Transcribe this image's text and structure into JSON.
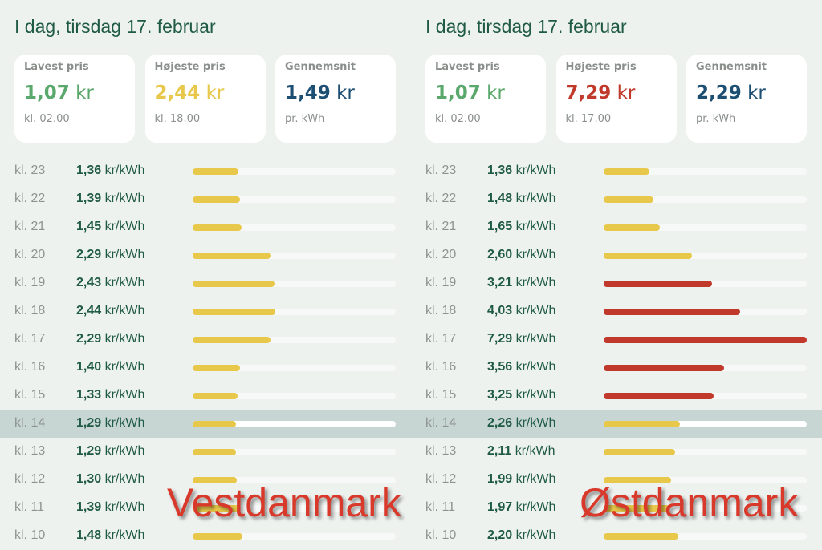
{
  "colors": {
    "low": "#5aa86c",
    "high_yellow": "#e8c84a",
    "high_red": "#c0392b",
    "avg": "#1d4f73",
    "bar_yellow": "#e8c84a",
    "bar_red": "#c0392b"
  },
  "panels": [
    {
      "title": "I dag, tirsdag 17. februar",
      "region_label": "Vestdanmark",
      "cards": [
        {
          "label": "Lavest pris",
          "value": "1,07",
          "unit": "kr",
          "sub": "kl. 02.00",
          "color": "#5aa86c"
        },
        {
          "label": "Højeste pris",
          "value": "2,44",
          "unit": "kr",
          "sub": "kl. 18.00",
          "color": "#e8c84a"
        },
        {
          "label": "Gennemsnit",
          "value": "1,49",
          "unit": "kr",
          "sub": "pr. kWh",
          "color": "#1d4f73"
        }
      ],
      "unit": "kr/kWh",
      "rows": [
        {
          "hour": "kl. 23",
          "price": "1,36"
        },
        {
          "hour": "kl. 22",
          "price": "1,39"
        },
        {
          "hour": "kl. 21",
          "price": "1,45"
        },
        {
          "hour": "kl. 20",
          "price": "2,29"
        },
        {
          "hour": "kl. 19",
          "price": "2,43"
        },
        {
          "hour": "kl. 18",
          "price": "2,44"
        },
        {
          "hour": "kl. 17",
          "price": "2,29"
        },
        {
          "hour": "kl. 16",
          "price": "1,40"
        },
        {
          "hour": "kl. 15",
          "price": "1,33"
        },
        {
          "hour": "kl. 14",
          "price": "1,29",
          "current": true
        },
        {
          "hour": "kl. 13",
          "price": "1,29"
        },
        {
          "hour": "kl. 12",
          "price": "1,30"
        },
        {
          "hour": "kl. 11",
          "price": "1,39"
        },
        {
          "hour": "kl. 10",
          "price": "1,48"
        }
      ]
    },
    {
      "title": "I dag, tirsdag 17. februar",
      "region_label": "Østdanmark",
      "cards": [
        {
          "label": "Lavest pris",
          "value": "1,07",
          "unit": "kr",
          "sub": "kl. 02.00",
          "color": "#5aa86c"
        },
        {
          "label": "Højeste pris",
          "value": "7,29",
          "unit": "kr",
          "sub": "kl. 17.00",
          "color": "#c0392b"
        },
        {
          "label": "Gennemsnit",
          "value": "2,29",
          "unit": "kr",
          "sub": "pr. kWh",
          "color": "#1d4f73"
        }
      ],
      "unit": "kr/kWh",
      "rows": [
        {
          "hour": "kl. 23",
          "price": "1,36"
        },
        {
          "hour": "kl. 22",
          "price": "1,48"
        },
        {
          "hour": "kl. 21",
          "price": "1,65"
        },
        {
          "hour": "kl. 20",
          "price": "2,60"
        },
        {
          "hour": "kl. 19",
          "price": "3,21"
        },
        {
          "hour": "kl. 18",
          "price": "4,03"
        },
        {
          "hour": "kl. 17",
          "price": "7,29"
        },
        {
          "hour": "kl. 16",
          "price": "3,56"
        },
        {
          "hour": "kl. 15",
          "price": "3,25"
        },
        {
          "hour": "kl. 14",
          "price": "2,26",
          "current": true
        },
        {
          "hour": "kl. 13",
          "price": "2,11"
        },
        {
          "hour": "kl. 12",
          "price": "1,99"
        },
        {
          "hour": "kl. 11",
          "price": "1,97"
        },
        {
          "hour": "kl. 10",
          "price": "2,20"
        }
      ]
    }
  ]
}
